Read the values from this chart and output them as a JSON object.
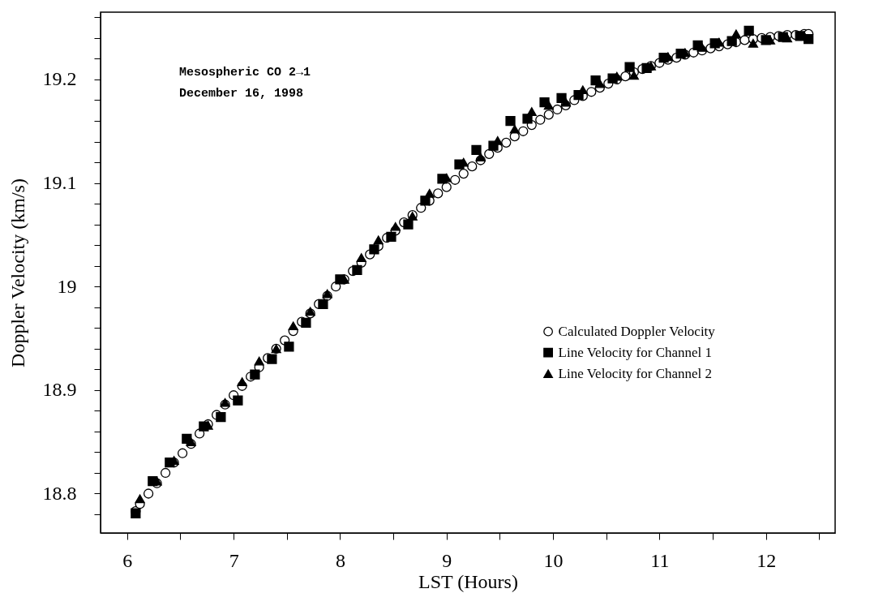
{
  "chart_data": {
    "type": "scatter",
    "xlabel": "LST (Hours)",
    "ylabel": "Doppler Velocity (km/s)",
    "annotations": [
      "Mesospheric CO 2→1",
      "December 16, 1998"
    ],
    "xlim": [
      5.75,
      12.65
    ],
    "ylim": [
      18.762,
      19.265
    ],
    "xticks": [
      6,
      {
        "value": 6.5,
        "label": null
      },
      7,
      {
        "value": 7.5,
        "label": null
      },
      8,
      {
        "value": 8.5,
        "label": null
      },
      9,
      {
        "value": 9.5,
        "label": null
      },
      10,
      {
        "value": 10.5,
        "label": null
      },
      11,
      {
        "value": 11.5,
        "label": null
      },
      12,
      {
        "value": 12.5,
        "label": null
      }
    ],
    "yticks": [
      {
        "value": 18.78,
        "label": null
      },
      18.8,
      {
        "value": 18.82,
        "label": null
      },
      {
        "value": 18.84,
        "label": null
      },
      {
        "value": 18.86,
        "label": null
      },
      {
        "value": 18.88,
        "label": null
      },
      18.9,
      {
        "value": 18.92,
        "label": null
      },
      {
        "value": 18.94,
        "label": null
      },
      {
        "value": 18.96,
        "label": null
      },
      {
        "value": 18.98,
        "label": null
      },
      19,
      {
        "value": 19.02,
        "label": null
      },
      {
        "value": 19.04,
        "label": null
      },
      {
        "value": 19.06,
        "label": null
      },
      {
        "value": 19.08,
        "label": null
      },
      19.1,
      {
        "value": 19.12,
        "label": null
      },
      {
        "value": 19.14,
        "label": null
      },
      {
        "value": 19.16,
        "label": null
      },
      {
        "value": 19.18,
        "label": null
      },
      19.2,
      {
        "value": 19.22,
        "label": null
      },
      {
        "value": 19.24,
        "label": null
      },
      {
        "value": 19.26,
        "label": null
      }
    ],
    "grid": false,
    "legend": "right",
    "series": [
      {
        "name": "Calculated Doppler Velocity",
        "color": "#000000",
        "marker": "circle",
        "x": [
          6.08,
          6.12,
          6.2,
          6.28,
          6.36,
          6.44,
          6.52,
          6.6,
          6.68,
          6.76,
          6.84,
          6.92,
          7.0,
          7.08,
          7.16,
          7.24,
          7.32,
          7.4,
          7.48,
          7.56,
          7.64,
          7.72,
          7.8,
          7.88,
          7.96,
          8.04,
          8.12,
          8.2,
          8.28,
          8.36,
          8.44,
          8.52,
          8.6,
          8.68,
          8.76,
          8.84,
          8.92,
          9.0,
          9.08,
          9.16,
          9.24,
          9.32,
          9.4,
          9.48,
          9.56,
          9.64,
          9.72,
          9.8,
          9.88,
          9.96,
          10.04,
          10.12,
          10.2,
          10.28,
          10.36,
          10.44,
          10.52,
          10.6,
          10.68,
          10.76,
          10.84,
          10.92,
          11.0,
          11.08,
          11.16,
          11.24,
          11.32,
          11.4,
          11.48,
          11.56,
          11.64,
          11.72,
          11.8,
          11.88,
          11.96,
          12.04,
          12.12,
          12.2,
          12.28,
          12.36,
          12.4
        ],
        "values": [
          18.783,
          18.79,
          18.8,
          18.81,
          18.82,
          18.83,
          18.839,
          18.848,
          18.858,
          18.867,
          18.876,
          18.886,
          18.895,
          18.904,
          18.913,
          18.922,
          18.931,
          18.94,
          18.948,
          18.957,
          18.966,
          18.974,
          18.983,
          18.991,
          19.0,
          19.007,
          19.015,
          19.023,
          19.031,
          19.039,
          19.047,
          19.054,
          19.062,
          19.069,
          19.076,
          19.083,
          19.09,
          19.096,
          19.103,
          19.109,
          19.116,
          19.122,
          19.128,
          19.134,
          19.139,
          19.145,
          19.15,
          19.156,
          19.161,
          19.166,
          19.171,
          19.175,
          19.18,
          19.184,
          19.188,
          19.192,
          19.196,
          19.2,
          19.203,
          19.207,
          19.21,
          19.213,
          19.216,
          19.219,
          19.221,
          19.224,
          19.226,
          19.228,
          19.23,
          19.232,
          19.234,
          19.236,
          19.238,
          19.239,
          19.24,
          19.241,
          19.242,
          19.243,
          19.243,
          19.244,
          19.244
        ]
      },
      {
        "name": "Line Velocity for Channel 1",
        "color": "#000000",
        "marker": "square",
        "x": [
          6.08,
          6.24,
          6.4,
          6.56,
          6.72,
          6.88,
          7.04,
          7.2,
          7.36,
          7.52,
          7.68,
          7.84,
          8.0,
          8.16,
          8.32,
          8.48,
          8.64,
          8.8,
          8.96,
          9.12,
          9.28,
          9.44,
          9.6,
          9.76,
          9.92,
          10.08,
          10.24,
          10.4,
          10.56,
          10.72,
          10.88,
          11.04,
          11.2,
          11.36,
          11.52,
          11.68,
          11.84,
          12.0,
          12.16,
          12.32,
          12.4
        ],
        "values": [
          18.781,
          18.812,
          18.83,
          18.853,
          18.865,
          18.874,
          18.89,
          18.915,
          18.93,
          18.942,
          18.965,
          18.983,
          19.007,
          19.016,
          19.036,
          19.048,
          19.06,
          19.083,
          19.104,
          19.118,
          19.132,
          19.136,
          19.16,
          19.162,
          19.178,
          19.182,
          19.185,
          19.199,
          19.201,
          19.212,
          19.211,
          19.221,
          19.225,
          19.233,
          19.235,
          19.237,
          19.247,
          19.238,
          19.241,
          19.242,
          19.239
        ],
        "errors": [
          0.003,
          0.003,
          0.003,
          0.003,
          0.003,
          0.003,
          0.003,
          0.003,
          0.003,
          0.003,
          0.003,
          0.003,
          0.003,
          0.003,
          0.003,
          0.003,
          0.003,
          0.003,
          0.003,
          0.003,
          0.003,
          0.003,
          0.003,
          0.003,
          0.003,
          0.003,
          0.003,
          0.003,
          0.003,
          0.003,
          0.003,
          0.003,
          0.003,
          0.003,
          0.003,
          0.003,
          0.003,
          0.003,
          0.003,
          0.003,
          0.003
        ]
      },
      {
        "name": "Line Velocity for Channel 2",
        "color": "#000000",
        "marker": "triangle",
        "x": [
          6.12,
          6.28,
          6.44,
          6.6,
          6.76,
          6.92,
          7.08,
          7.24,
          7.4,
          7.56,
          7.72,
          7.88,
          8.04,
          8.2,
          8.36,
          8.52,
          8.68,
          8.84,
          9.0,
          9.16,
          9.32,
          9.48,
          9.64,
          9.8,
          9.96,
          10.12,
          10.28,
          10.44,
          10.6,
          10.76,
          10.92,
          11.08,
          11.24,
          11.4,
          11.56,
          11.72,
          11.88,
          12.04,
          12.2,
          12.36
        ],
        "values": [
          18.795,
          18.812,
          18.832,
          18.85,
          18.866,
          18.888,
          18.908,
          18.928,
          18.94,
          18.962,
          18.976,
          18.993,
          19.007,
          19.028,
          19.045,
          19.058,
          19.068,
          19.09,
          19.105,
          19.12,
          19.125,
          19.141,
          19.152,
          19.169,
          19.175,
          19.178,
          19.19,
          19.196,
          19.203,
          19.204,
          19.213,
          19.222,
          19.226,
          19.231,
          19.236,
          19.244,
          19.235,
          19.238,
          19.24,
          19.242
        ],
        "errors": [
          0.003,
          0.003,
          0.003,
          0.003,
          0.003,
          0.003,
          0.003,
          0.003,
          0.003,
          0.003,
          0.003,
          0.003,
          0.003,
          0.003,
          0.003,
          0.003,
          0.003,
          0.003,
          0.003,
          0.003,
          0.003,
          0.003,
          0.003,
          0.003,
          0.003,
          0.003,
          0.003,
          0.003,
          0.003,
          0.003,
          0.003,
          0.003,
          0.003,
          0.003,
          0.003,
          0.003,
          0.003,
          0.003,
          0.003,
          0.003
        ]
      }
    ]
  }
}
